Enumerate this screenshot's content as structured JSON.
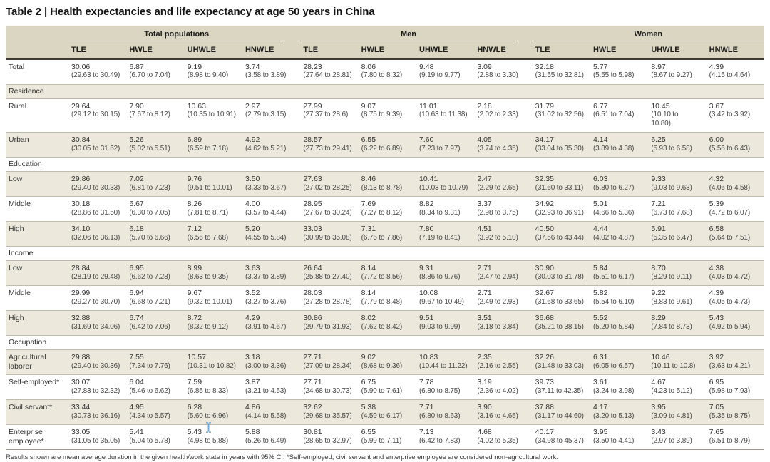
{
  "title": "Table 2 | Health expectancies and life expectancy at age 50 years in China",
  "groups": [
    "Total populations",
    "Men",
    "Women"
  ],
  "columns": [
    "TLE",
    "HWLE",
    "UHWLE",
    "HNWLE"
  ],
  "rows": [
    {
      "type": "data",
      "label": "Total",
      "cells": [
        [
          "30.06",
          "(29.63 to 30.49)"
        ],
        [
          "6.87",
          "(6.70 to 7.04)"
        ],
        [
          "9.19",
          "(8.98 to 9.40)"
        ],
        [
          "3.74",
          "(3.58 to 3.89)"
        ],
        [
          "28.23",
          "(27.64 to 28.81)"
        ],
        [
          "8.06",
          "(7.80 to 8.32)"
        ],
        [
          "9.48",
          "(9.19 to 9.77)"
        ],
        [
          "3.09",
          "(2.88 to 3.30)"
        ],
        [
          "32.18",
          "(31.55 to 32.81)"
        ],
        [
          "5.77",
          "(5.55 to 5.98)"
        ],
        [
          "8.97",
          "(8.67 to 9.27)"
        ],
        [
          "4.39",
          "(4.15 to 4.64)"
        ]
      ]
    },
    {
      "type": "section",
      "label": "Residence"
    },
    {
      "type": "data",
      "label": "Rural",
      "cells": [
        [
          "29.64",
          "(29.12 to 30.15)"
        ],
        [
          "7.90",
          "(7.67 to 8.12)"
        ],
        [
          "10.63",
          "(10.35 to 10.91)"
        ],
        [
          "2.97",
          "(2.79 to 3.15)"
        ],
        [
          "27.99",
          "(27.37 to 28.6)"
        ],
        [
          "9.07",
          "(8.75 to 9.39)"
        ],
        [
          "11.01",
          "(10.63 to 11.38)"
        ],
        [
          "2.18",
          "(2.02 to 2.33)"
        ],
        [
          "31.79",
          "(31.02 to 32.56)"
        ],
        [
          "6.77",
          "(6.51 to 7.04)"
        ],
        [
          "10.45",
          "(10.10 to\n10.80)"
        ],
        [
          "3.67",
          "(3.42 to 3.92)"
        ]
      ]
    },
    {
      "type": "data",
      "label": "Urban",
      "cells": [
        [
          "30.84",
          "(30.05 to 31.62)"
        ],
        [
          "5.26",
          "(5.02 to 5.51)"
        ],
        [
          "6.89",
          "(6.59 to 7.18)"
        ],
        [
          "4.92",
          "(4.62 to 5.21)"
        ],
        [
          "28.57",
          "(27.73 to 29.41)"
        ],
        [
          "6.55",
          "(6.22 to 6.89)"
        ],
        [
          "7.60",
          "(7.23 to 7.97)"
        ],
        [
          "4.05",
          "(3.74 to 4.35)"
        ],
        [
          "34.17",
          "(33.04 to 35.30)"
        ],
        [
          "4.14",
          "(3.89 to 4.38)"
        ],
        [
          "6.25",
          "(5.93 to 6.58)"
        ],
        [
          "6.00",
          "(5.56 to 6.43)"
        ]
      ]
    },
    {
      "type": "section",
      "label": "Education"
    },
    {
      "type": "data",
      "label": "Low",
      "cells": [
        [
          "29.86",
          "(29.40 to 30.33)"
        ],
        [
          "7.02",
          "(6.81 to 7.23)"
        ],
        [
          "9.76",
          "(9.51 to 10.01)"
        ],
        [
          "3.50",
          "(3.33 to 3.67)"
        ],
        [
          "27.63",
          "(27.02 to 28.25)"
        ],
        [
          "8.46",
          "(8.13 to 8.78)"
        ],
        [
          "10.41",
          "(10.03 to 10.79)"
        ],
        [
          "2.47",
          "(2.29 to 2.65)"
        ],
        [
          "32.35",
          "(31.60 to 33.11)"
        ],
        [
          "6.03",
          "(5.80 to 6.27)"
        ],
        [
          "9.33",
          "(9.03 to 9.63)"
        ],
        [
          "4.32",
          "(4.06 to 4.58)"
        ]
      ]
    },
    {
      "type": "data",
      "label": "Middle",
      "cells": [
        [
          "30.18",
          "(28.86 to 31.50)"
        ],
        [
          "6.67",
          "(6.30 to 7.05)"
        ],
        [
          "8.26",
          "(7.81 to 8.71)"
        ],
        [
          "4.00",
          "(3.57 to 4.44)"
        ],
        [
          "28.95",
          "(27.67 to 30.24)"
        ],
        [
          "7.69",
          "(7.27 to 8.12)"
        ],
        [
          "8.82",
          "(8.34 to 9.31)"
        ],
        [
          "3.37",
          "(2.98 to 3.75)"
        ],
        [
          "34.92",
          "(32.93 to 36.91)"
        ],
        [
          "5.01",
          "(4.66 to 5.36)"
        ],
        [
          "7.21",
          "(6.73 to 7.68)"
        ],
        [
          "5.39",
          "(4.72 to 6.07)"
        ]
      ]
    },
    {
      "type": "data",
      "label": "High",
      "cells": [
        [
          "34.10",
          "(32.06 to 36.13)"
        ],
        [
          "6.18",
          "(5.70 to 6.66)"
        ],
        [
          "7.12",
          "(6.56 to 7.68)"
        ],
        [
          "5.20",
          "(4.55 to 5.84)"
        ],
        [
          "33.03",
          "(30.99 to 35.08)"
        ],
        [
          "7.31",
          "(6.76 to 7.86)"
        ],
        [
          "7.80",
          "(7.19 to 8.41)"
        ],
        [
          "4.51",
          "(3.92 to 5.10)"
        ],
        [
          "40.50",
          "(37.56 to 43.44)"
        ],
        [
          "4.44",
          "(4.02 to 4.87)"
        ],
        [
          "5.91",
          "(5.35 to 6.47)"
        ],
        [
          "6.58",
          "(5.64 to 7.51)"
        ]
      ]
    },
    {
      "type": "section",
      "label": "Income"
    },
    {
      "type": "data",
      "label": "Low",
      "cells": [
        [
          "28.84",
          "(28.19 to 29.48)"
        ],
        [
          "6.95",
          "(6.62 to 7.28)"
        ],
        [
          "8.99",
          "(8.63 to 9.35)"
        ],
        [
          "3.63",
          "(3.37 to 3.89)"
        ],
        [
          "26.64",
          "(25.88 to 27.40)"
        ],
        [
          "8.14",
          "(7.72 to 8.56)"
        ],
        [
          "9.31",
          "(8.86 to 9.76)"
        ],
        [
          "2.71",
          "(2.47 to 2.94)"
        ],
        [
          "30.90",
          "(30.03 to 31.78)"
        ],
        [
          "5.84",
          "(5.51 to 6.17)"
        ],
        [
          "8.70",
          "(8.29 to 9.11)"
        ],
        [
          "4.38",
          "(4.03 to 4.72)"
        ]
      ]
    },
    {
      "type": "data",
      "label": "Middle",
      "cells": [
        [
          "29.99",
          "(29.27 to 30.70)"
        ],
        [
          "6.94",
          "(6.68 to 7.21)"
        ],
        [
          "9.67",
          "(9.32 to 10.01)"
        ],
        [
          "3.52",
          "(3.27 to 3.76)"
        ],
        [
          "28.03",
          "(27.28 to 28.78)"
        ],
        [
          "8.14",
          "(7.79 to 8.48)"
        ],
        [
          "10.08",
          "(9.67 to 10.49)"
        ],
        [
          "2.71",
          "(2.49 to 2.93)"
        ],
        [
          "32.67",
          "(31.68 to 33.65)"
        ],
        [
          "5.82",
          "(5.54 to 6.10)"
        ],
        [
          "9.22",
          "(8.83 to 9.61)"
        ],
        [
          "4.39",
          "(4.05 to 4.73)"
        ]
      ]
    },
    {
      "type": "data",
      "label": "High",
      "cells": [
        [
          "32.88",
          "(31.69 to 34.06)"
        ],
        [
          "6.74",
          "(6.42 to 7.06)"
        ],
        [
          "8.72",
          "(8.32 to 9.12)"
        ],
        [
          "4.29",
          "(3.91 to 4.67)"
        ],
        [
          "30.86",
          "(29.79 to 31.93)"
        ],
        [
          "8.02",
          "(7.62 to 8.42)"
        ],
        [
          "9.51",
          "(9.03 to 9.99)"
        ],
        [
          "3.51",
          "(3.18 to 3.84)"
        ],
        [
          "36.68",
          "(35.21 to 38.15)"
        ],
        [
          "5.52",
          "(5.20 to 5.84)"
        ],
        [
          "8.29",
          "(7.84 to 8.73)"
        ],
        [
          "5.43",
          "(4.92 to 5.94)"
        ]
      ]
    },
    {
      "type": "section",
      "label": "Occupation"
    },
    {
      "type": "data",
      "label": "Agricultural laborer",
      "cells": [
        [
          "29.88",
          "(29.40 to 30.36)"
        ],
        [
          "7.55",
          "(7.34 to 7.76)"
        ],
        [
          "10.57",
          "(10.31 to 10.82)"
        ],
        [
          "3.18",
          "(3.00 to 3.36)"
        ],
        [
          "27.71",
          "(27.09 to 28.34)"
        ],
        [
          "9.02",
          "(8.68 to 9.36)"
        ],
        [
          "10.83",
          "(10.44 to 11.22)"
        ],
        [
          "2.35",
          "(2.16 to 2.55)"
        ],
        [
          "32.26",
          "(31.48 to 33.03)"
        ],
        [
          "6.31",
          "(6.05 to 6.57)"
        ],
        [
          "10.46",
          "(10.11 to 10.8)"
        ],
        [
          "3.92",
          "(3.63 to 4.21)"
        ]
      ]
    },
    {
      "type": "data",
      "label": "Self-employed*",
      "cells": [
        [
          "30.07",
          "(27.83 to 32.32)"
        ],
        [
          "6.04",
          "(5.46 to 6.62)"
        ],
        [
          "7.59",
          "(6.85 to 8.33)"
        ],
        [
          "3.87",
          "(3.21 to 4.53)"
        ],
        [
          "27.71",
          "(24.68 to 30.73)"
        ],
        [
          "6.75",
          "(5.90 to 7.61)"
        ],
        [
          "7.78",
          "(6.80 to 8.75)"
        ],
        [
          "3.19",
          "(2.36 to 4.02)"
        ],
        [
          "39.73",
          "(37.11 to 42.35)"
        ],
        [
          "3.61",
          "(3.24 to 3.98)"
        ],
        [
          "4.67",
          "(4.23 to 5.12)"
        ],
        [
          "6.95",
          "(5.98 to 7.93)"
        ]
      ]
    },
    {
      "type": "data",
      "label": "Civil servant*",
      "cells": [
        [
          "33.44",
          "(30.73 to 36.16)"
        ],
        [
          "4.95",
          "(4.34 to 5.57)"
        ],
        [
          "6.28",
          "(5.60 to 6.96)"
        ],
        [
          "4.86",
          "(4.14 to 5.58)"
        ],
        [
          "32.62",
          "(29.68 to 35.57)"
        ],
        [
          "5.38",
          "(4.59 to 6.17)"
        ],
        [
          "7.71",
          "(6.80 to 8.63)"
        ],
        [
          "3.90",
          "(3.16 to 4.65)"
        ],
        [
          "37.88",
          "(31.17 to 44.60)"
        ],
        [
          "4.17",
          "(3.20 to 5.13)"
        ],
        [
          "3.95",
          "(3.09 to 4.81)"
        ],
        [
          "7.05",
          "(5.35 to 8.75)"
        ]
      ]
    },
    {
      "type": "data",
      "label": "Enterprise employee*",
      "cells": [
        [
          "33.05",
          "(31.05 to 35.05)"
        ],
        [
          "5.41",
          "(5.04 to 5.78)"
        ],
        [
          "5.43",
          "(4.98 to 5.88)"
        ],
        [
          "5.88",
          "(5.26 to 6.49)"
        ],
        [
          "30.81",
          "(28.65 to 32.97)"
        ],
        [
          "6.55",
          "(5.99 to 7.11)"
        ],
        [
          "7.13",
          "(6.42 to 7.83)"
        ],
        [
          "4.68",
          "(4.02 to 5.35)"
        ],
        [
          "40.17",
          "(34.98 to 45.37)"
        ],
        [
          "3.95",
          "(3.50 to 4.41)"
        ],
        [
          "3.43",
          "(2.97 to 3.89)"
        ],
        [
          "7.65",
          "(6.51 to 8.79)"
        ]
      ]
    }
  ],
  "footnote": "Results shown are mean average duration in the given health/work state in years with 95% CI. *Self-employed, civil servant and enterprise employee are considered non-agricultural work.",
  "cursor": {
    "name": "text-cursor",
    "color": "#6aa5dc"
  },
  "colors": {
    "header_bg": "#dad6c2",
    "stripe_bg": "#ece9dc",
    "border_light": "#bfbcae",
    "border_dark": "#3c3a33"
  }
}
